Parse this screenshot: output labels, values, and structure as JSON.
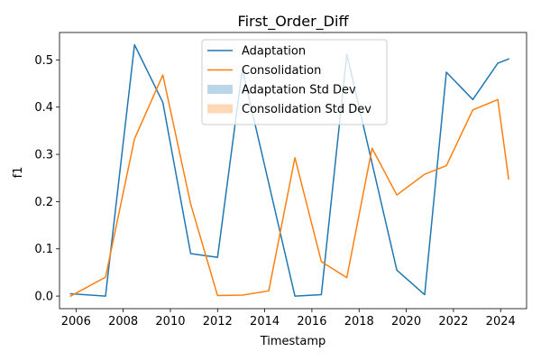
{
  "chart_data": {
    "type": "line",
    "title": "First_Order_Diff",
    "xlabel": "Timestamp",
    "ylabel": "f1",
    "xlim": [
      2005.3,
      2025.1
    ],
    "ylim": [
      -0.0266,
      0.558
    ],
    "x_ticks": [
      2006,
      2008,
      2010,
      2012,
      2014,
      2016,
      2018,
      2020,
      2022,
      2024
    ],
    "y_ticks": [
      0.0,
      0.1,
      0.2,
      0.3,
      0.4,
      0.5
    ],
    "y_tick_labels": [
      "0.0",
      "0.1",
      "0.2",
      "0.3",
      "0.4",
      "0.5"
    ],
    "grid": false,
    "legend_position": "upper center",
    "series": [
      {
        "name": "Adaptation",
        "color": "#1f77b4",
        "x": [
          2005.77,
          2007.25,
          2008.48,
          2009.68,
          2010.86,
          2012.0,
          2013.05,
          2015.28,
          2016.4,
          2017.48,
          2019.6,
          2020.78,
          2021.7,
          2022.82,
          2023.88,
          2024.34
        ],
        "y": [
          0.005,
          0.0,
          0.532,
          0.41,
          0.09,
          0.082,
          0.48,
          0.0,
          0.003,
          0.512,
          0.055,
          0.003,
          0.474,
          0.416,
          0.493,
          0.502
        ]
      },
      {
        "name": "Consolidation",
        "color": "#ff7f0e",
        "x": [
          2005.77,
          2007.25,
          2008.48,
          2009.68,
          2010.86,
          2012.0,
          2013.05,
          2014.17,
          2015.28,
          2016.4,
          2017.48,
          2018.55,
          2019.6,
          2020.78,
          2021.7,
          2022.82,
          2023.88,
          2024.34
        ],
        "y": [
          0.0,
          0.04,
          0.333,
          0.468,
          0.195,
          0.001,
          0.002,
          0.011,
          0.293,
          0.073,
          0.039,
          0.313,
          0.214,
          0.258,
          0.276,
          0.394,
          0.416,
          0.248
        ]
      }
    ],
    "std_dev_series": [
      {
        "name": "Adaptation Std Dev",
        "color": "#1f77b4",
        "alpha": 0.3
      },
      {
        "name": "Consolidation Std Dev",
        "color": "#ff7f0e",
        "alpha": 0.3
      }
    ]
  }
}
